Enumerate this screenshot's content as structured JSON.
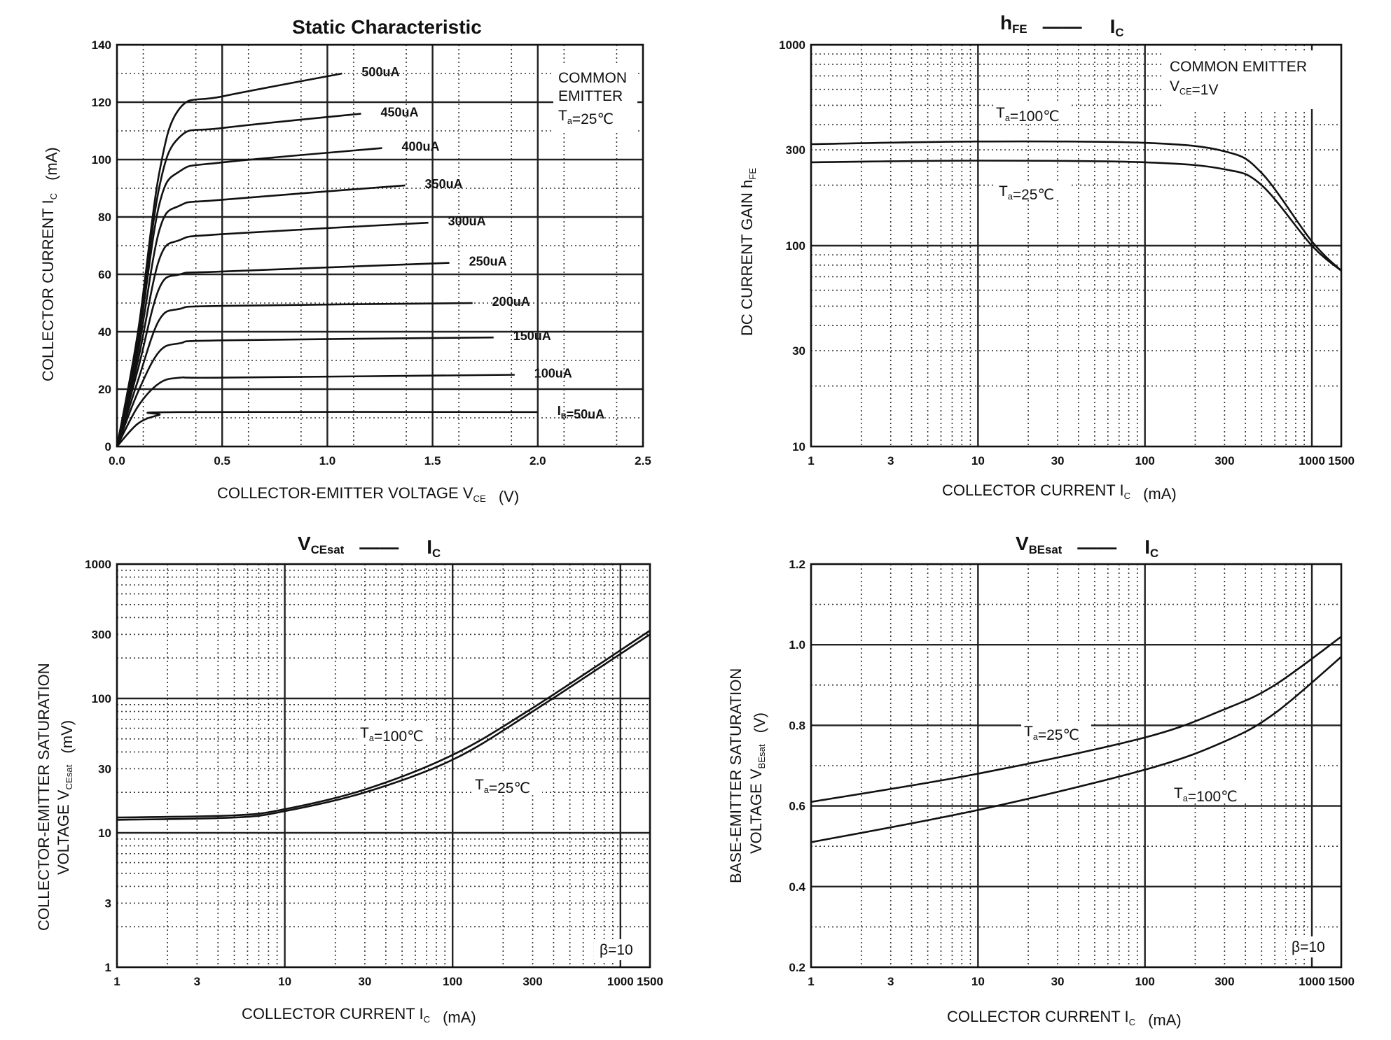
{
  "chart_data": [
    {
      "id": "static",
      "type": "line",
      "title": "Static Characteristic",
      "xlabel": "COLLECTOR-EMITTER VOLTAGE   V",
      "xlabel_sub": "CE",
      "xlabel_unit": "(V)",
      "ylabel": "COLLECTOR CURRENT   I",
      "ylabel_sub": "C",
      "ylabel_unit": "(mA)",
      "xscale": "linear",
      "yscale": "linear",
      "xlim": [
        0,
        2.5
      ],
      "ylim": [
        0,
        140
      ],
      "x_ticks": [
        0,
        0.5,
        1.0,
        1.5,
        2.0,
        2.5
      ],
      "x_tick_labels": [
        "0.0",
        "0.5",
        "1.0",
        "1.5",
        "2.0",
        "2.5"
      ],
      "y_ticks": [
        0,
        20,
        40,
        60,
        80,
        100,
        120,
        140
      ],
      "y_tick_labels": [
        "0",
        "20",
        "40",
        "60",
        "80",
        "100",
        "120",
        "140"
      ],
      "grid": true,
      "annotations": [
        {
          "lines": [
            "COMMON",
            "EMITTER",
            "T"
          ],
          "sub": "a",
          "tail": "=25℃"
        }
      ],
      "series": [
        {
          "label": "500uA",
          "label_sub": "",
          "values": [
            [
              0,
              0
            ],
            [
              0.1,
              40
            ],
            [
              0.2,
              95
            ],
            [
              0.3,
              118
            ],
            [
              0.5,
              122
            ],
            [
              1.07,
              130
            ]
          ]
        },
        {
          "label": "450uA",
          "label_sub": "",
          "values": [
            [
              0,
              0
            ],
            [
              0.1,
              38
            ],
            [
              0.2,
              90
            ],
            [
              0.3,
              108
            ],
            [
              0.5,
              111
            ],
            [
              1.16,
              116
            ]
          ]
        },
        {
          "label": "400uA",
          "label_sub": "",
          "values": [
            [
              0,
              0
            ],
            [
              0.1,
              36
            ],
            [
              0.2,
              84
            ],
            [
              0.3,
              96
            ],
            [
              0.5,
              99
            ],
            [
              1.26,
              104
            ]
          ]
        },
        {
          "label": "350uA",
          "label_sub": "",
          "values": [
            [
              0,
              0
            ],
            [
              0.1,
              33
            ],
            [
              0.2,
              75
            ],
            [
              0.3,
              84
            ],
            [
              0.5,
              86
            ],
            [
              1.37,
              91
            ]
          ]
        },
        {
          "label": "300uA",
          "label_sub": "",
          "values": [
            [
              0,
              0
            ],
            [
              0.1,
              30
            ],
            [
              0.2,
              65
            ],
            [
              0.3,
              72
            ],
            [
              0.5,
              74
            ],
            [
              1.48,
              78
            ]
          ]
        },
        {
          "label": "250uA",
          "label_sub": "",
          "values": [
            [
              0,
              0
            ],
            [
              0.1,
              27
            ],
            [
              0.2,
              55
            ],
            [
              0.3,
              60
            ],
            [
              0.5,
              61
            ],
            [
              1.58,
              64
            ]
          ]
        },
        {
          "label": "200uA",
          "label_sub": "",
          "values": [
            [
              0,
              0
            ],
            [
              0.1,
              23
            ],
            [
              0.2,
              44
            ],
            [
              0.3,
              48
            ],
            [
              0.5,
              49
            ],
            [
              1.69,
              50
            ]
          ]
        },
        {
          "label": "150uA",
          "label_sub": "",
          "values": [
            [
              0,
              0
            ],
            [
              0.1,
              19
            ],
            [
              0.2,
              33
            ],
            [
              0.3,
              36
            ],
            [
              0.5,
              37
            ],
            [
              1.79,
              38
            ]
          ]
        },
        {
          "label": "100uA",
          "label_sub": "",
          "values": [
            [
              0,
              0
            ],
            [
              0.1,
              14
            ],
            [
              0.2,
              22
            ],
            [
              0.3,
              24
            ],
            [
              0.5,
              24
            ],
            [
              1.89,
              25
            ]
          ]
        },
        {
          "label": "I",
          "label_sub": "B",
          "label_tail": "=50uA",
          "values": [
            [
              0,
              0
            ],
            [
              0.1,
              8
            ],
            [
              0.2,
              11
            ],
            [
              0.3,
              12
            ],
            [
              2.0,
              12
            ]
          ]
        }
      ]
    },
    {
      "id": "hfe",
      "type": "line",
      "title": "h",
      "title_sub": "FE",
      "title_dash": "——",
      "title_right": "I",
      "title_right_sub": "C",
      "xlabel": "COLLECTOR CURRENT   I",
      "xlabel_sub": "C",
      "xlabel_unit": "(mA)",
      "ylabel": "DC CURRENT GAIN   h",
      "ylabel_sub": "FE",
      "xscale": "log",
      "yscale": "log",
      "xlim": [
        1,
        1500
      ],
      "ylim": [
        10,
        1000
      ],
      "x_ticks": [
        1,
        3,
        10,
        30,
        100,
        300,
        1000,
        1500
      ],
      "x_tick_labels": [
        "1",
        "3",
        "10",
        "30",
        "100",
        "300",
        "1000",
        "1500"
      ],
      "y_ticks": [
        10,
        30,
        100,
        300,
        1000
      ],
      "y_tick_labels": [
        "10",
        "30",
        "100",
        "300",
        "1000"
      ],
      "grid": true,
      "annotations": [
        {
          "lines": [
            "COMMON EMITTER",
            "V"
          ],
          "sub": "CE",
          "tail": "=1V"
        }
      ],
      "series": [
        {
          "label": "T",
          "label_sub": "a",
          "label_tail": "=100℃",
          "values": [
            [
              1,
              320
            ],
            [
              10,
              330
            ],
            [
              100,
              325
            ],
            [
              300,
              295
            ],
            [
              500,
              230
            ],
            [
              1000,
              105
            ],
            [
              1500,
              75
            ]
          ]
        },
        {
          "label": "T",
          "label_sub": "a",
          "label_tail": "=25℃",
          "values": [
            [
              1,
              260
            ],
            [
              10,
              265
            ],
            [
              100,
              260
            ],
            [
              300,
              240
            ],
            [
              500,
              200
            ],
            [
              1000,
              100
            ],
            [
              1500,
              75
            ]
          ]
        }
      ]
    },
    {
      "id": "vcesat",
      "type": "line",
      "title": "V",
      "title_sub": "CEsat",
      "title_dash": "——",
      "title_right": "I",
      "title_right_sub": "C",
      "xlabel": "COLLECTOR CURRENT   I",
      "xlabel_sub": "C",
      "xlabel_unit": "(mA)",
      "ylabel": "COLLECTOR-EMITTER SATURATION",
      "ylabel2": "VOLTAGE   V",
      "ylabel2_sub": "CEsat",
      "ylabel_unit": "(mV)",
      "xscale": "log",
      "yscale": "log",
      "xlim": [
        1,
        1500
      ],
      "ylim": [
        1,
        1000
      ],
      "x_ticks": [
        1,
        3,
        10,
        30,
        100,
        300,
        1000,
        1500
      ],
      "x_tick_labels": [
        "1",
        "3",
        "10",
        "30",
        "100",
        "300",
        "1000",
        "1500"
      ],
      "y_ticks": [
        1,
        3,
        10,
        30,
        100,
        300,
        1000
      ],
      "y_tick_labels": [
        "1",
        "3",
        "10",
        "30",
        "100",
        "300",
        "1000"
      ],
      "grid": true,
      "annotations": [
        {
          "lines": [
            "β=10"
          ],
          "sub": "",
          "tail": ""
        }
      ],
      "series": [
        {
          "label": "T",
          "label_sub": "a",
          "label_tail": "=100℃",
          "values": [
            [
              1,
              13
            ],
            [
              5,
              13.5
            ],
            [
              10,
              15
            ],
            [
              30,
              21
            ],
            [
              100,
              38
            ],
            [
              300,
              85
            ],
            [
              1500,
              320
            ]
          ]
        },
        {
          "label": "T",
          "label_sub": "a",
          "label_tail": "=25℃",
          "values": [
            [
              1,
              12.5
            ],
            [
              5,
              13
            ],
            [
              10,
              14.5
            ],
            [
              30,
              20
            ],
            [
              100,
              35
            ],
            [
              300,
              80
            ],
            [
              1500,
              300
            ]
          ]
        }
      ]
    },
    {
      "id": "vbesat",
      "type": "line",
      "title": "V",
      "title_sub": "BEsat",
      "title_dash": "——",
      "title_right": "I",
      "title_right_sub": "C",
      "xlabel": "COLLECTOR CURRENT   I",
      "xlabel_sub": "C",
      "xlabel_unit": "(mA)",
      "ylabel": "BASE-EMITTER SATURATION",
      "ylabel2": "VOLTAGE   V",
      "ylabel2_sub": "BEsat",
      "ylabel_unit": "(V)",
      "xscale": "log",
      "yscale": "linear",
      "xlim": [
        1,
        1500
      ],
      "ylim": [
        0.2,
        1.2
      ],
      "x_ticks": [
        1,
        3,
        10,
        30,
        100,
        300,
        1000,
        1500
      ],
      "x_tick_labels": [
        "1",
        "3",
        "10",
        "30",
        "100",
        "300",
        "1000",
        "1500"
      ],
      "y_ticks": [
        0.2,
        0.4,
        0.6,
        0.8,
        1.0,
        1.2
      ],
      "y_tick_labels": [
        "0.2",
        "0.4",
        "0.6",
        "0.8",
        "1.0",
        "1.2"
      ],
      "grid": true,
      "annotations": [
        {
          "lines": [
            "β=10"
          ],
          "sub": "",
          "tail": ""
        }
      ],
      "series": [
        {
          "label": "T",
          "label_sub": "a",
          "label_tail": "=25℃",
          "values": [
            [
              1,
              0.61
            ],
            [
              10,
              0.68
            ],
            [
              100,
              0.77
            ],
            [
              300,
              0.84
            ],
            [
              600,
              0.9
            ],
            [
              1500,
              1.02
            ]
          ]
        },
        {
          "label": "T",
          "label_sub": "a",
          "label_tail": "=100℃",
          "values": [
            [
              1,
              0.51
            ],
            [
              10,
              0.59
            ],
            [
              100,
              0.69
            ],
            [
              300,
              0.76
            ],
            [
              600,
              0.83
            ],
            [
              1500,
              0.97
            ]
          ]
        }
      ]
    }
  ]
}
